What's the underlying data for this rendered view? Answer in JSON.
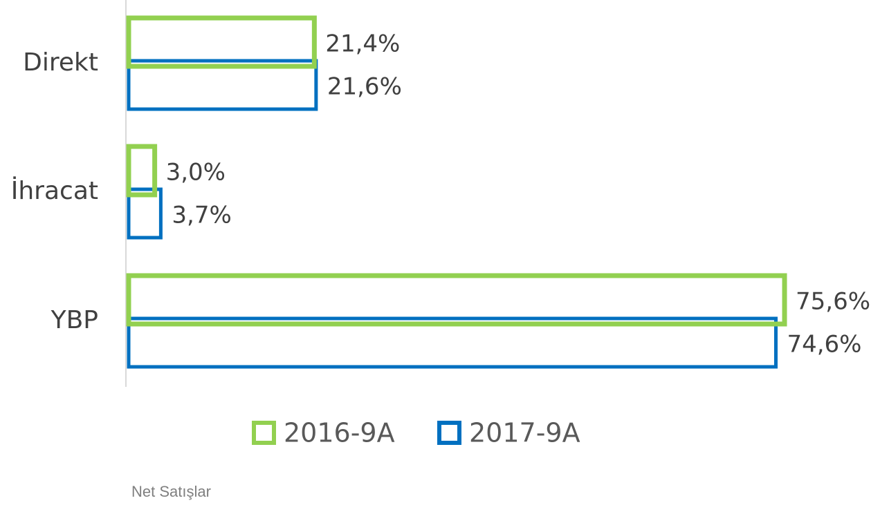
{
  "chart_data": {
    "type": "hbar",
    "categories": [
      "Direkt",
      "İhracat",
      "YBP"
    ],
    "series": [
      {
        "name": "2016-9A",
        "color": "#92d050",
        "values": [
          21.4,
          3.0,
          75.6
        ],
        "value_labels": [
          "21,4%",
          "3,0%",
          "75,6%"
        ]
      },
      {
        "name": "2017-9A",
        "color": "#0070c0",
        "values": [
          21.6,
          3.7,
          74.6
        ],
        "value_labels": [
          "21,6%",
          "3,7%",
          "74,6%"
        ]
      }
    ],
    "caption": "Net Satışlar"
  }
}
